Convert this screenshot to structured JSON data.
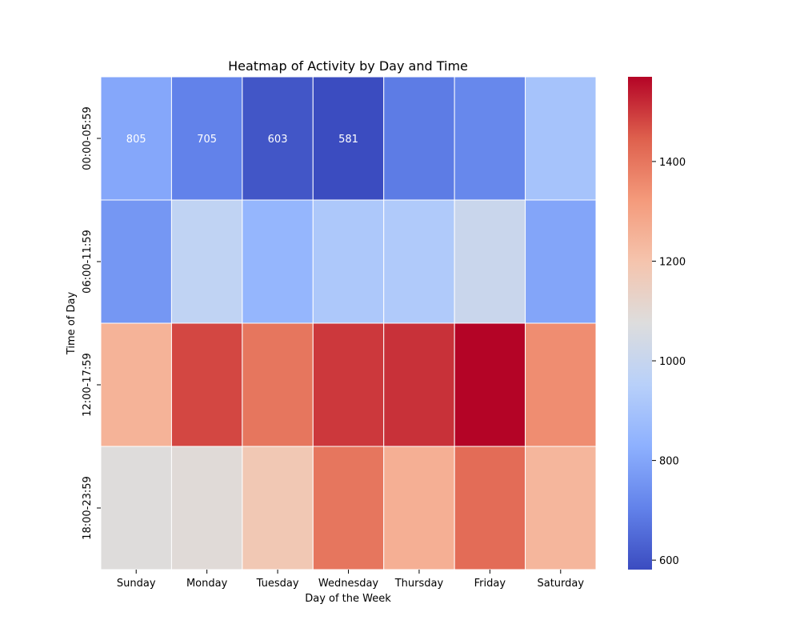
{
  "chart_data": {
    "type": "heatmap",
    "title": "Heatmap of Activity by Day and Time",
    "xlabel": "Day of the Week",
    "ylabel": "Time of Day",
    "x_categories": [
      "Sunday",
      "Monday",
      "Tuesday",
      "Wednesday",
      "Thursday",
      "Friday",
      "Saturday"
    ],
    "y_categories": [
      "00:00-05:59",
      "06:00-11:59",
      "12:00-17:59",
      "18:00-23:59"
    ],
    "values": [
      [
        805,
        705,
        603,
        581,
        690,
        720,
        900
      ],
      [
        760,
        980,
        850,
        920,
        930,
        1010,
        800
      ],
      [
        1250,
        1480,
        1400,
        1500,
        1510,
        1570,
        1350
      ],
      [
        1080,
        1090,
        1180,
        1400,
        1260,
        1420,
        1240
      ]
    ],
    "annotated_cells": [
      {
        "row": 0,
        "col": 0,
        "text": "805"
      },
      {
        "row": 0,
        "col": 1,
        "text": "705"
      },
      {
        "row": 0,
        "col": 2,
        "text": "603"
      },
      {
        "row": 0,
        "col": 3,
        "text": "581"
      }
    ],
    "colormap": "coolwarm",
    "colorbar": {
      "range": [
        581,
        1570
      ],
      "ticks": [
        600,
        800,
        1000,
        1200,
        1400
      ]
    },
    "cell_border_color": "#ffffff"
  }
}
